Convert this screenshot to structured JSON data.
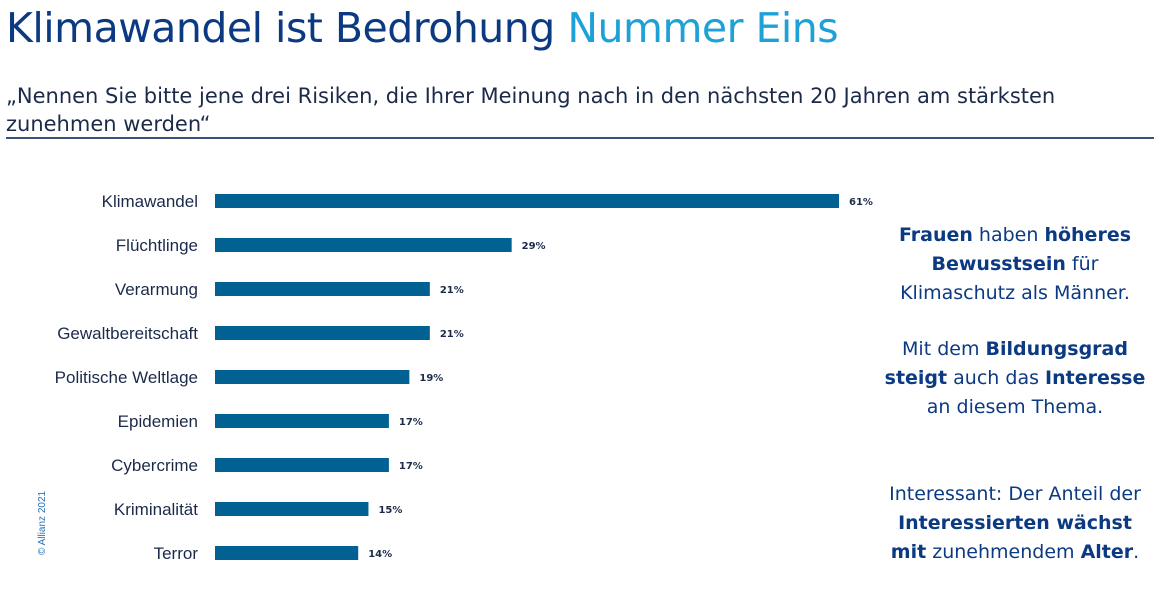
{
  "header": {
    "title_main": "Klimawandel ist Bedrohung",
    "title_accent": "Nummer Eins",
    "question": "„Nennen Sie bitte jene drei Risiken, die Ihrer Meinung nach in den nächsten 20 Jahren am stärksten zunehmen werden“"
  },
  "copyright": "© Allianz 2021",
  "side_notes": [
    {
      "parts": [
        {
          "text": "Frauen",
          "bold": true
        },
        {
          "text": " haben ",
          "bold": false
        },
        {
          "text": "höheres Bewusstsein",
          "bold": true
        },
        {
          "text": " für Klimaschutz als Männer.",
          "bold": false
        }
      ]
    },
    {
      "parts": [
        {
          "text": "Mit dem ",
          "bold": false
        },
        {
          "text": "Bildungsgrad steigt",
          "bold": true
        },
        {
          "text": " auch das ",
          "bold": false
        },
        {
          "text": "Interesse",
          "bold": true
        },
        {
          "text": " an diesem Thema.",
          "bold": false
        }
      ]
    },
    {
      "parts": [
        {
          "text": "Interessant: Der Anteil der ",
          "bold": false
        },
        {
          "text": "Interessierten wächst mit",
          "bold": true
        },
        {
          "text": " zunehmendem ",
          "bold": false
        },
        {
          "text": "Alter",
          "bold": true
        },
        {
          "text": ".",
          "bold": false
        }
      ]
    }
  ],
  "chart_data": {
    "type": "bar",
    "orientation": "horizontal",
    "title": "Klimawandel ist Bedrohung Nummer Eins",
    "xlabel": "",
    "ylabel": "",
    "unit": "%",
    "categories": [
      "Klimawandel",
      "Flüchtlinge",
      "Verarmung",
      "Gewaltbereitschaft",
      "Politische Weltlage",
      "Epidemien",
      "Cybercrime",
      "Kriminalität",
      "Terror"
    ],
    "values": [
      61,
      29,
      21,
      21,
      19,
      17,
      17,
      15,
      14
    ],
    "value_labels": [
      "61%",
      "29%",
      "21%",
      "21%",
      "19%",
      "17%",
      "17%",
      "15%",
      "14%"
    ],
    "xlim": [
      0,
      61
    ],
    "grid": false,
    "legend": "none",
    "bar_color": "#006192"
  }
}
